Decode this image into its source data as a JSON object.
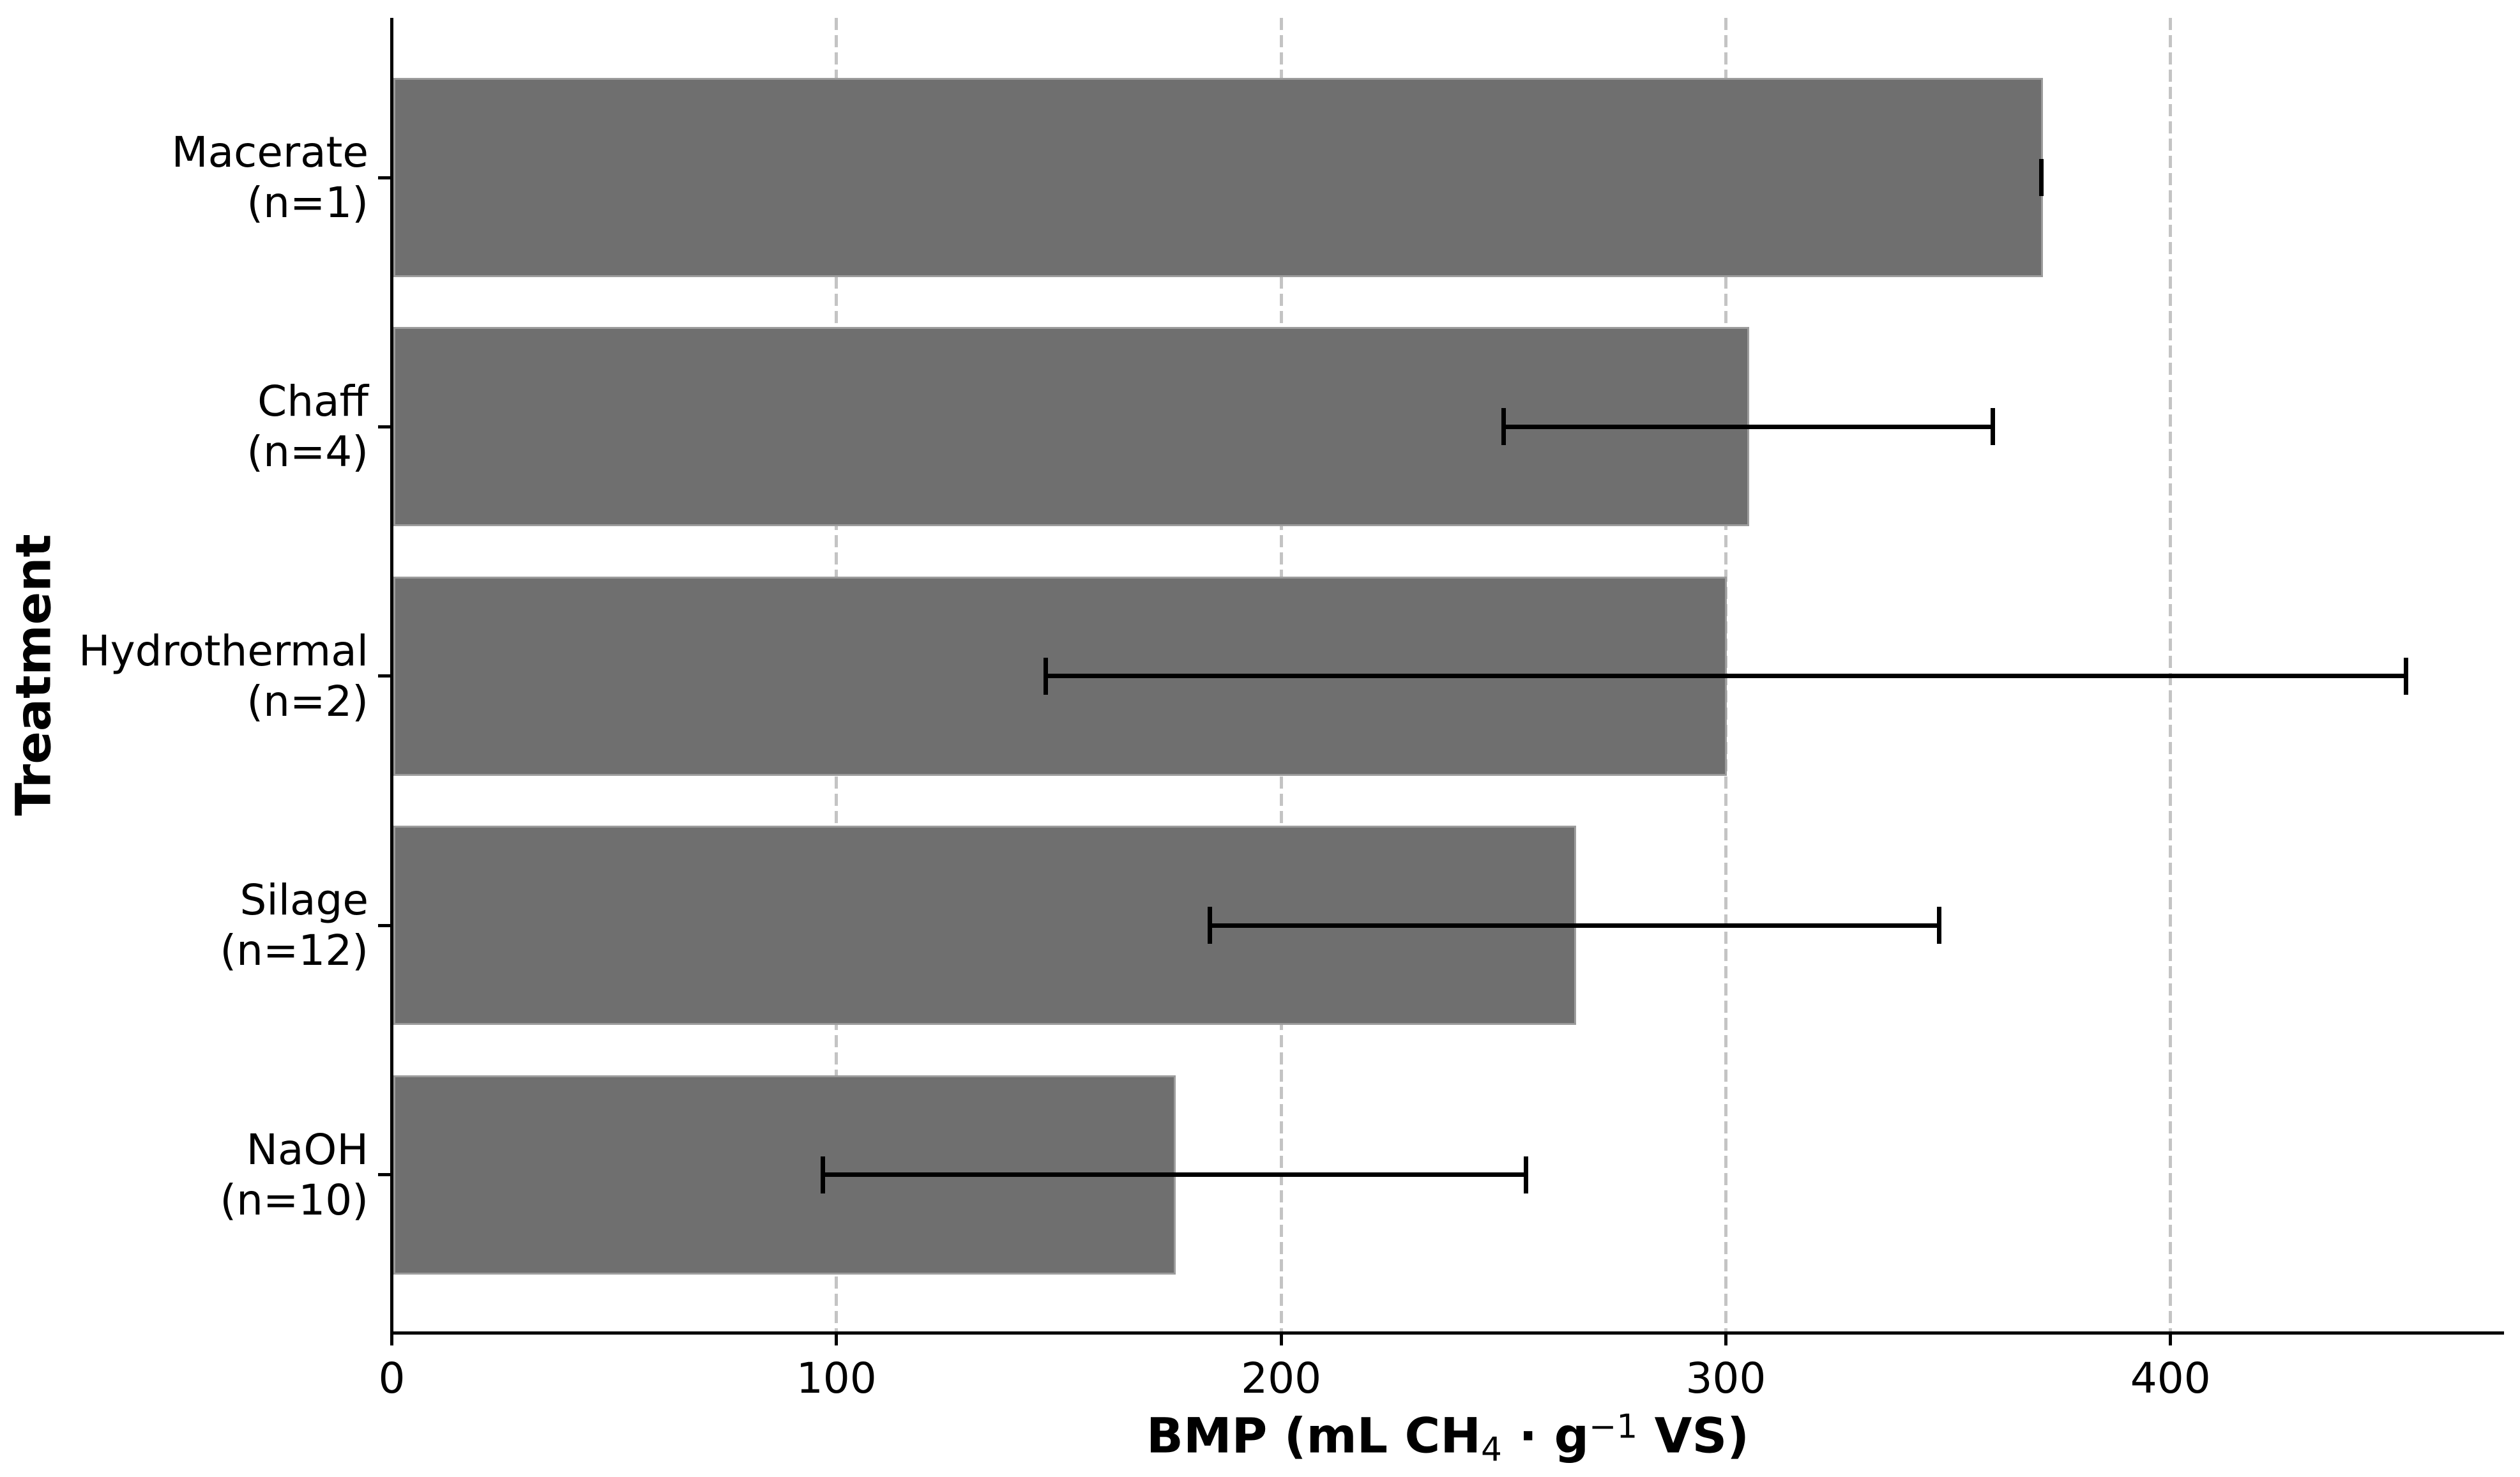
{
  "chart_data": {
    "type": "bar",
    "orientation": "horizontal",
    "title": "",
    "xlabel": {
      "plain": "BMP (mL CH4 · g^-1 VS)",
      "part1": "BMP (mL CH",
      "sub": "4",
      "part2": " · g",
      "sup": "−1",
      "part3": " VS)"
    },
    "ylabel": "Treatment",
    "categories": [
      {
        "name": "Macerate",
        "line1": "Macerate",
        "line2": "(n=1)",
        "n": 1,
        "value": 371,
        "error": 0,
        "error_low": 371,
        "error_high": 371
      },
      {
        "name": "Chaff",
        "line1": "Chaff",
        "line2": "(n=4)",
        "n": 4,
        "value": 305,
        "error": 55,
        "error_low": 250,
        "error_high": 360
      },
      {
        "name": "Hydrothermal",
        "line1": "Hydrothermal",
        "line2": "(n=2)",
        "n": 2,
        "value": 300,
        "error": 153,
        "error_low": 147,
        "error_high": 453
      },
      {
        "name": "Silage",
        "line1": "Silage",
        "line2": "(n=12)",
        "n": 12,
        "value": 266,
        "error": 82,
        "error_low": 184,
        "error_high": 348
      },
      {
        "name": "NaOH",
        "line1": "NaOH",
        "line2": "(n=10)",
        "n": 10,
        "value": 176,
        "error": 79,
        "error_low": 97,
        "error_high": 255
      }
    ],
    "xticks": [
      0,
      100,
      200,
      300,
      400
    ],
    "xlim": [
      0,
      475
    ],
    "grid": {
      "axis": "x",
      "style": "dashed",
      "color": "#c4c4c4"
    },
    "legend": null,
    "colors": {
      "bar_fill": "#6f6f6f",
      "bar_edge": "#9c9c9c",
      "error_bar": "#000000",
      "axis": "#000000",
      "background": "#ffffff"
    }
  }
}
